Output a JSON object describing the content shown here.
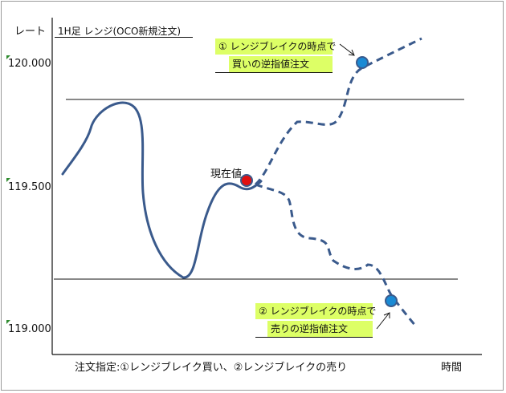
{
  "axis": {
    "y_title": "レート",
    "x_title": "時間",
    "y_ticks": [
      "120.000",
      "119.500",
      "119.000"
    ]
  },
  "chart_title": "1H足 レンジ(OCO新規注文)",
  "current_price_label": "現在値",
  "callouts": {
    "buy": {
      "line1": "① レンジブレイクの時点で",
      "line2": "買いの逆指値注文"
    },
    "sell": {
      "line1": "② レンジブレイクの時点で",
      "line2": "売りの逆指値注文"
    }
  },
  "footer_note": "注文指定:①レンジブレイク買い、②レンジブレイクの売り",
  "colors": {
    "price_line": "#3a5a8c",
    "range_line": "#111111",
    "current_dot": "#e01010",
    "order_dot": "#1a8ad4",
    "callout_bg": "#ddff66"
  }
}
